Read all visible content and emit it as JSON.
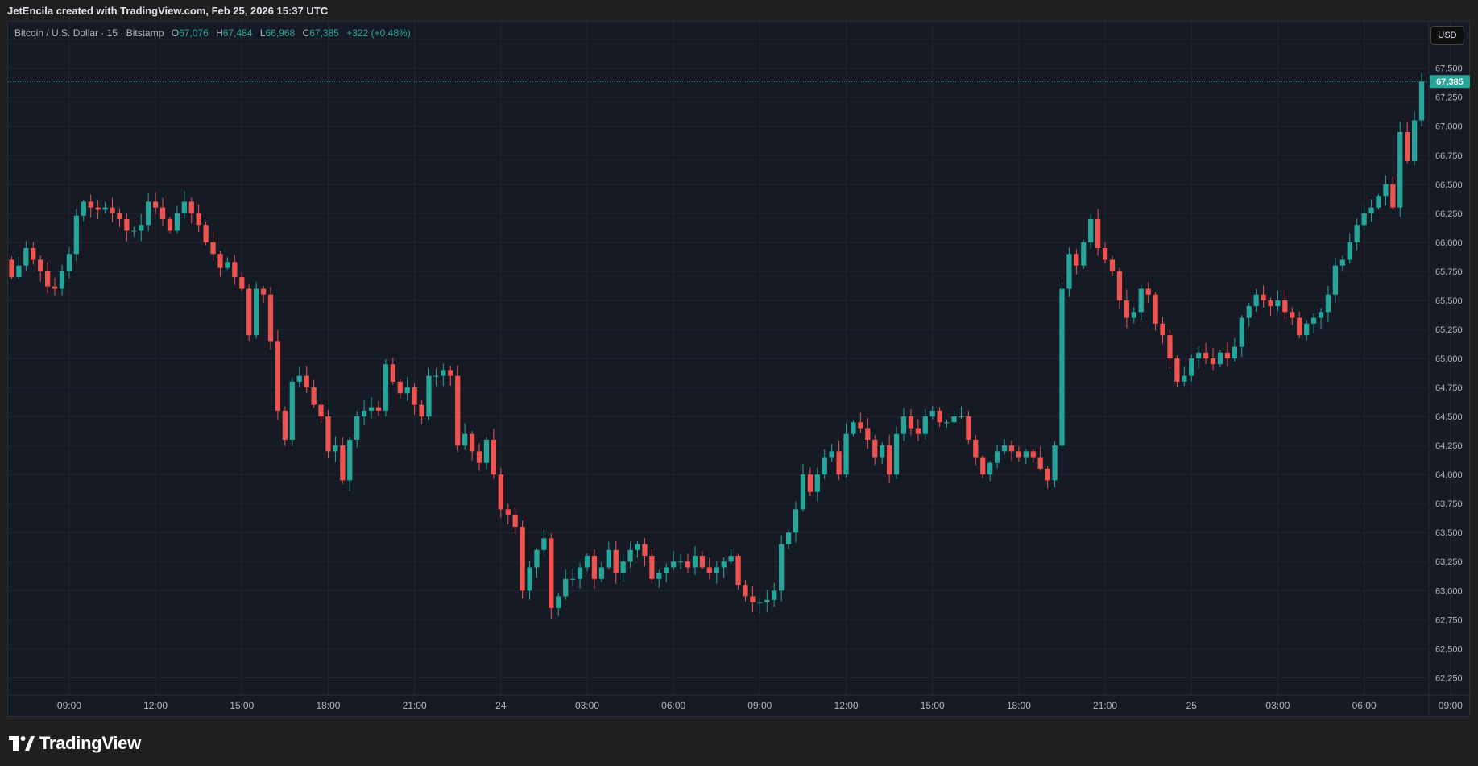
{
  "header": {
    "attribution": "JetEncila created with TradingView.com, Feb 25, 2026 15:37 UTC"
  },
  "legend": {
    "symbol": "Bitcoin / U.S. Dollar · 15 · Bitstamp",
    "open_label": "O",
    "open": "67,076",
    "high_label": "H",
    "high": "67,484",
    "low_label": "L",
    "low": "66,968",
    "close_label": "C",
    "close": "67,385",
    "change": "+322 (+0.48%)"
  },
  "currency": "USD",
  "last_price_label": "67,385",
  "logo_text": "TradingView",
  "colors": {
    "up": "#26a69a",
    "down": "#ef5350",
    "background": "#161a25",
    "grid": "#232733",
    "axis_text": "#b2b5be"
  },
  "chart_data": {
    "type": "candlestick",
    "title": "Bitcoin / U.S. Dollar · 15 · Bitstamp",
    "ylim": [
      62100,
      67900
    ],
    "y_ticks": [
      62250,
      62500,
      62750,
      63000,
      63250,
      63500,
      63750,
      64000,
      64250,
      64500,
      64750,
      65000,
      65250,
      65500,
      65750,
      66000,
      66250,
      66500,
      66750,
      67000,
      67250,
      67500,
      67750
    ],
    "x_ticks": [
      {
        "label": "09:00",
        "index": 8
      },
      {
        "label": "12:00",
        "index": 20
      },
      {
        "label": "15:00",
        "index": 32
      },
      {
        "label": "18:00",
        "index": 44
      },
      {
        "label": "21:00",
        "index": 56
      },
      {
        "label": "24",
        "index": 68
      },
      {
        "label": "03:00",
        "index": 80
      },
      {
        "label": "06:00",
        "index": 92
      },
      {
        "label": "09:00",
        "index": 104
      },
      {
        "label": "12:00",
        "index": 116
      },
      {
        "label": "15:00",
        "index": 128
      },
      {
        "label": "18:00",
        "index": 140
      },
      {
        "label": "21:00",
        "index": 152
      },
      {
        "label": "25",
        "index": 164
      },
      {
        "label": "03:00",
        "index": 176
      },
      {
        "label": "06:00",
        "index": 188
      },
      {
        "label": "09:00",
        "index": 200
      },
      {
        "label": "12:00",
        "index": 212
      },
      {
        "label": "15:00",
        "index": 224
      }
    ],
    "last_price": 67385,
    "closes": [
      65700,
      65800,
      65950,
      65850,
      65750,
      65620,
      65600,
      65750,
      65900,
      66230,
      66350,
      66300,
      66280,
      66300,
      66250,
      66200,
      66100,
      66100,
      66150,
      66350,
      66300,
      66200,
      66100,
      66250,
      66350,
      66250,
      66150,
      66000,
      65900,
      65780,
      65830,
      65700,
      65600,
      65200,
      65600,
      65550,
      65150,
      64550,
      64300,
      64800,
      64850,
      64750,
      64600,
      64500,
      64200,
      64250,
      63950,
      64300,
      64500,
      64550,
      64580,
      64550,
      64950,
      64800,
      64700,
      64750,
      64600,
      64500,
      64850,
      64850,
      64900,
      64850,
      64250,
      64350,
      64200,
      64100,
      64300,
      64000,
      63700,
      63650,
      63550,
      63000,
      63200,
      63350,
      63450,
      62850,
      62950,
      63100,
      63100,
      63200,
      63300,
      63100,
      63200,
      63350,
      63150,
      63250,
      63350,
      63400,
      63300,
      63100,
      63150,
      63200,
      63250,
      63250,
      63200,
      63300,
      63200,
      63150,
      63200,
      63250,
      63300,
      63050,
      62950,
      62900,
      62900,
      62920,
      63000,
      63400,
      63500,
      63700,
      64000,
      63850,
      64000,
      64150,
      64200,
      64000,
      64350,
      64450,
      64400,
      64300,
      64150,
      64250,
      64000,
      64350,
      64500,
      64400,
      64350,
      64500,
      64550,
      64450,
      64450,
      64500,
      64500,
      64300,
      64150,
      64000,
      64100,
      64200,
      64250,
      64200,
      64150,
      64200,
      64150,
      64050,
      63950,
      64250,
      65600,
      65900,
      65800,
      66000,
      66200,
      65950,
      65850,
      65750,
      65500,
      65350,
      65400,
      65600,
      65550,
      65300,
      65200,
      65000,
      64800,
      64850,
      65000,
      65050,
      65000,
      64950,
      65050,
      65000,
      65100,
      65350,
      65450,
      65550,
      65500,
      65450,
      65500,
      65400,
      65350,
      65200,
      65300,
      65350,
      65400,
      65550,
      65800,
      65850,
      66000,
      66150,
      66250,
      66300,
      66400,
      66500,
      66300,
      66950,
      66700,
      67050,
      67385
    ],
    "first_open": 65850
  }
}
